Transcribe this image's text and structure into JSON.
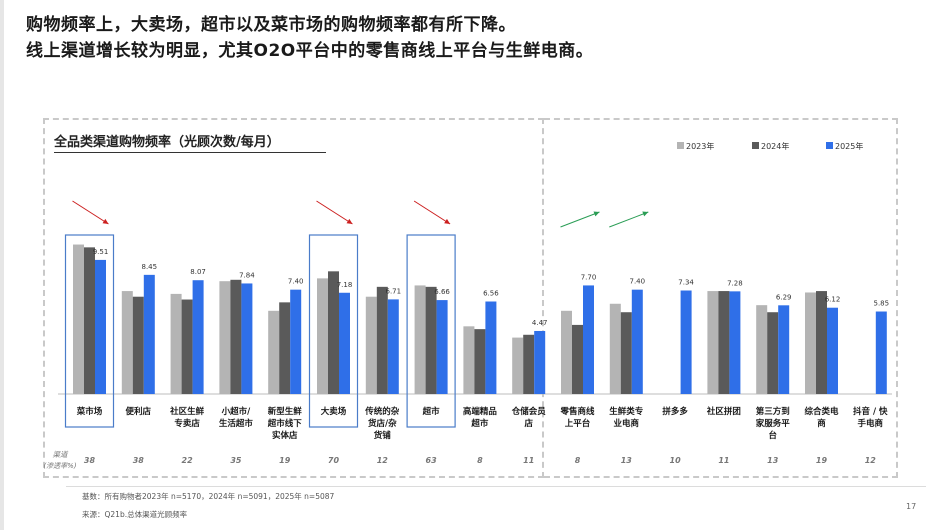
{
  "headline": {
    "line1": "购物频率上，大卖场，超市以及菜市场的购物频率都有所下降。",
    "line2": "线上渠道增长较为明显，尤其O2O平台中的零售商线上平台与生鲜电商。"
  },
  "footer": {
    "base": "基数：所有购物者2023年 n=5170，2024年 n=5091，2025年 n=5087",
    "source": "来源：Q21b.总体渠道光顾频率"
  },
  "page_number": "17",
  "colors": {
    "y2023": "#b4b4b4",
    "y2024": "#5a5a5a",
    "y2025": "#2f6fe8",
    "highlight": "#4a7cc9",
    "down_arrow": "#cc1f1f",
    "up_arrow": "#2a9d55"
  },
  "chart_data": {
    "type": "bar",
    "title": "全品类渠道购物频率（光顾次数/每月）",
    "legend": [
      "2023年",
      "2024年",
      "2025年"
    ],
    "legend_position": "top-right",
    "categories": [
      "菜市场",
      "便利店",
      "社区生鲜专卖店",
      "小超市/生活超市",
      "新型生鲜超市线下实体店",
      "大卖场",
      "传统的杂货店/杂货铺",
      "超市",
      "高端精品超市",
      "仓储会员店",
      "零售商线上平台",
      "生鲜类专业电商",
      "拼多多",
      "社区拼团",
      "第三方到家服务平台",
      "综合类电商",
      "抖音 / 快手电商"
    ],
    "category_lines": [
      [
        "菜市场"
      ],
      [
        "便利店"
      ],
      [
        "社区生鲜",
        "专卖店"
      ],
      [
        "小超市/",
        "生活超市"
      ],
      [
        "新型生鲜",
        "超市线下",
        "实体店"
      ],
      [
        "大卖场"
      ],
      [
        "传统的杂",
        "货店/杂",
        "货铺"
      ],
      [
        "超市"
      ],
      [
        "高端精品",
        "超市"
      ],
      [
        "仓储会员",
        "店"
      ],
      [
        "零售商线",
        "上平台"
      ],
      [
        "生鲜类专",
        "业电商"
      ],
      [
        "拼多多"
      ],
      [
        "社区拼团"
      ],
      [
        "第三方到",
        "家服务平",
        "台"
      ],
      [
        "综合类电",
        "商"
      ],
      [
        "抖音 / 快",
        "手电商"
      ]
    ],
    "series": [
      {
        "name": "2023年",
        "values": [
          10.6,
          7.3,
          7.1,
          8.0,
          5.9,
          8.2,
          6.9,
          7.7,
          4.8,
          4.0,
          5.9,
          6.4,
          null,
          7.3,
          6.3,
          7.2,
          null
        ]
      },
      {
        "name": "2024年",
        "values": [
          10.4,
          6.9,
          6.7,
          8.1,
          6.5,
          8.7,
          7.6,
          7.6,
          4.6,
          4.2,
          4.9,
          5.8,
          null,
          7.3,
          5.8,
          7.3,
          null
        ]
      },
      {
        "name": "2025年",
        "values": [
          9.51,
          8.45,
          8.07,
          7.84,
          7.4,
          7.18,
          6.71,
          6.66,
          6.56,
          4.47,
          7.7,
          7.4,
          7.34,
          7.28,
          6.29,
          6.12,
          5.85
        ]
      }
    ],
    "value_labels": [
      "9.51",
      "8.45",
      "8.07",
      "7.84",
      "7.40",
      "7.18",
      "6.71",
      "6.66",
      "6.56",
      "4.47",
      "7.70",
      "7.40",
      "7.34",
      "7.28",
      "6.29",
      "6.12",
      "5.85"
    ],
    "penetration_label": [
      "渠道",
      "(渗透率%)"
    ],
    "penetration": [
      "38",
      "38",
      "22",
      "35",
      "19",
      "70",
      "12",
      "63",
      "8",
      "11",
      "8",
      "13",
      "10",
      "11",
      "13",
      "19",
      "12"
    ],
    "highlighted": [
      0,
      5,
      7
    ],
    "down_arrows": [
      0,
      5,
      7
    ],
    "up_arrows": [
      10,
      11
    ],
    "ylim": [
      0,
      12
    ],
    "xlabel": "",
    "ylabel": ""
  }
}
